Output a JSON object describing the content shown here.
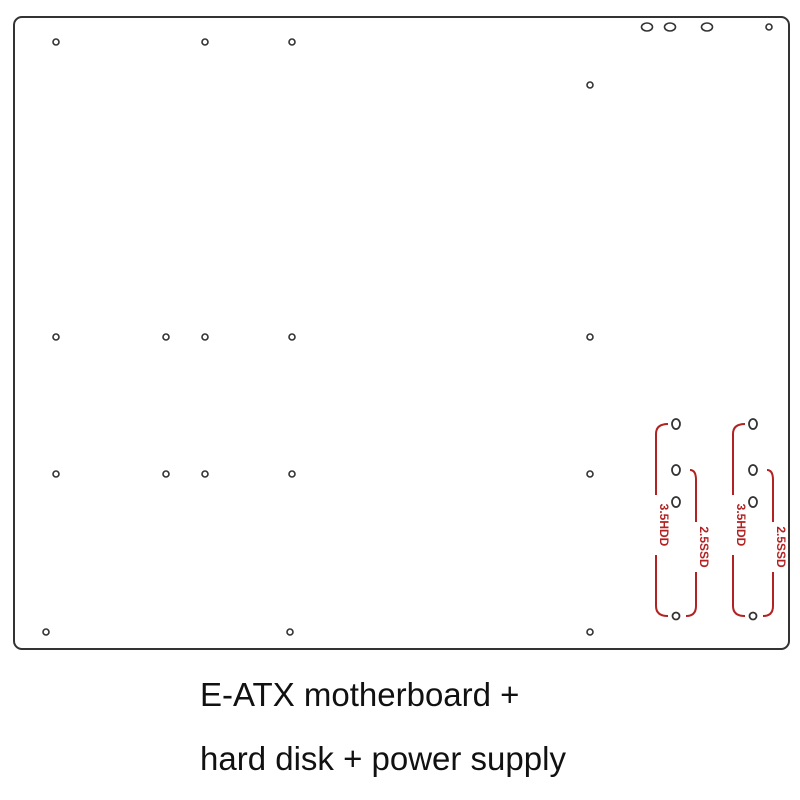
{
  "caption": {
    "line1": "E-ATX motherboard +",
    "line2": "hard disk + power supply"
  },
  "bays": [
    {
      "hdd_label": "3.5HDD",
      "ssd_label": "2.5SSD"
    },
    {
      "hdd_label": "3.5HDD",
      "ssd_label": "2.5SSD"
    }
  ],
  "colors": {
    "outline": "#333333",
    "bracket": "#b22222"
  }
}
